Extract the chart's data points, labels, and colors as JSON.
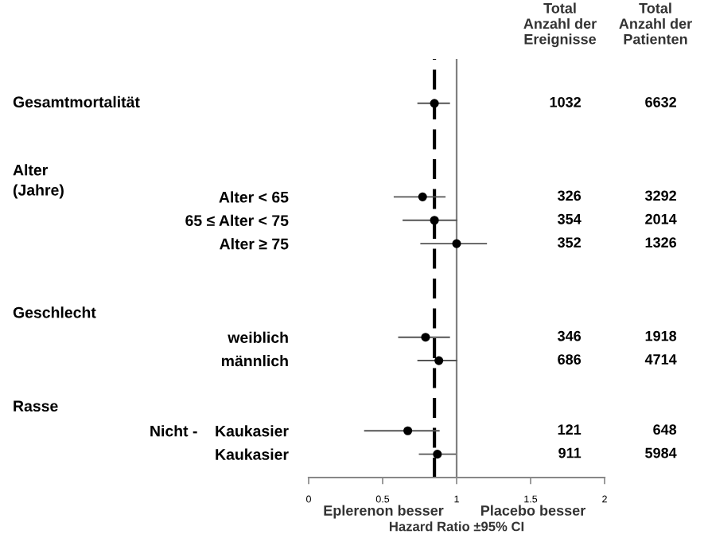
{
  "chart_data": {
    "type": "scatter",
    "orientation": "horizontal",
    "xlabel": "Hazard Ratio ±95% CI",
    "categories": [
      null,
      null,
      null,
      null,
      "Alter < 65",
      "65 ≤ Alter < 75",
      "Alter ≥ 75",
      null,
      null,
      null,
      "weiblich",
      "männlich",
      null,
      null,
      "Nicht -    Kaukasier",
      "Kaukasier"
    ],
    "series": [
      {
        "color": "#000000",
        "values": [
          0.85,
          null,
          null,
          null,
          0.77,
          0.85,
          1.0,
          null,
          null,
          null,
          0.79,
          0.88,
          null,
          null,
          0.67,
          0.87
        ],
        "errors": [
          [
            0.74,
            0.95
          ],
          null,
          null,
          null,
          [
            0.58,
            0.92
          ],
          [
            0.64,
            1.0
          ],
          [
            0.76,
            1.2
          ],
          null,
          null,
          null,
          [
            0.61,
            0.95
          ],
          [
            0.74,
            1.0
          ],
          null,
          null,
          [
            0.38,
            0.88
          ],
          [
            0.75,
            0.99
          ]
        ]
      }
    ],
    "marker": "circle",
    "xlim": [
      0,
      2
    ],
    "xticks": [
      0,
      0.5,
      1,
      1.5,
      2
    ],
    "ref_lines": [
      {
        "axis": "x",
        "value": 0.85,
        "color": "#000000",
        "line_style": "dashed"
      },
      {
        "axis": "x",
        "value": 1,
        "color": "#808080",
        "line_style": "solid"
      }
    ],
    "annotations": [
      "Total\nAnzahl der\nEreignisse",
      "Total\nAnzahl der\nPatienten",
      "Eplerenon besser",
      "Placebo besser",
      "Gesamtmortalität",
      "Alter\n(Jahre)",
      "Geschlecht",
      "Rasse",
      "1032",
      "6632",
      "326",
      "3292",
      "354",
      "2014",
      "352",
      "1326",
      "346",
      "1918",
      "686",
      "4714",
      "121",
      "648",
      "911",
      "5984"
    ]
  }
}
